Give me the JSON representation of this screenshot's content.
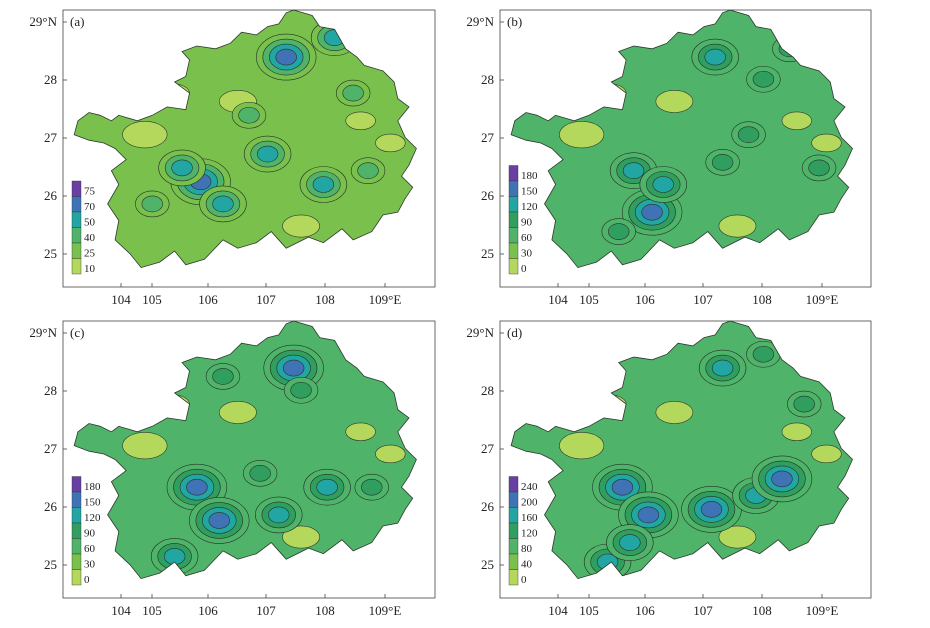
{
  "panels": [
    {
      "label": "(a)",
      "y_ticks": [
        "29°N",
        "28",
        "27",
        "26",
        "25"
      ],
      "x_ticks": [
        "104",
        "105",
        "106",
        "107",
        "108",
        "109°E"
      ],
      "legend": [
        "75",
        "70",
        "50",
        "40",
        "25",
        "10"
      ],
      "legend_colors": [
        "#6a3fa3",
        "#3f73b6",
        "#22a6a4",
        "#4fb36a",
        "#79c04c",
        "#b3d85c"
      ]
    },
    {
      "label": "(b)",
      "y_ticks": [
        "29°N",
        "28",
        "27",
        "26",
        "25"
      ],
      "x_ticks": [
        "104",
        "105",
        "106",
        "107",
        "108",
        "109°E"
      ],
      "legend": [
        "180",
        "150",
        "120",
        "90",
        "60",
        "30",
        "0"
      ],
      "legend_colors": [
        "#6a3fa3",
        "#3f73b6",
        "#22a6a4",
        "#2f9e5e",
        "#4fb36a",
        "#79c04c",
        "#b3d85c"
      ]
    },
    {
      "label": "(c)",
      "y_ticks": [
        "29°N",
        "28",
        "27",
        "26",
        "25"
      ],
      "x_ticks": [
        "104",
        "105",
        "106",
        "107",
        "108",
        "109°E"
      ],
      "legend": [
        "180",
        "150",
        "120",
        "90",
        "60",
        "30",
        "0"
      ],
      "legend_colors": [
        "#6a3fa3",
        "#3f73b6",
        "#22a6a4",
        "#2f9e5e",
        "#4fb36a",
        "#79c04c",
        "#b3d85c"
      ]
    },
    {
      "label": "(d)",
      "y_ticks": [
        "29°N",
        "28",
        "27",
        "26",
        "25"
      ],
      "x_ticks": [
        "104",
        "105",
        "106",
        "107",
        "108",
        "109°E"
      ],
      "legend": [
        "240",
        "200",
        "160",
        "120",
        "80",
        "40",
        "0"
      ],
      "legend_colors": [
        "#6a3fa3",
        "#3f73b6",
        "#22a6a4",
        "#2f9e5e",
        "#4fb36a",
        "#79c04c",
        "#b3d85c"
      ]
    }
  ]
}
